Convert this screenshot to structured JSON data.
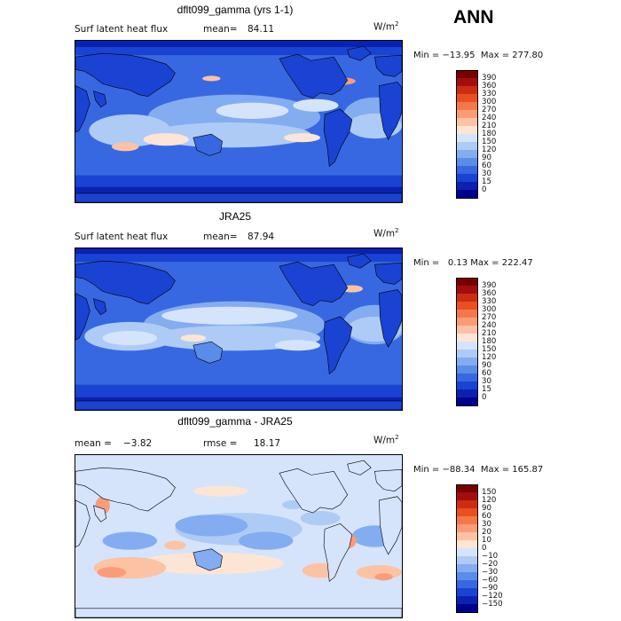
{
  "season": "ANN",
  "units_base": "W/m",
  "units_exp": "2",
  "chart_data": [
    {
      "type": "heatmap",
      "title": "dflt099_gamma (yrs 1-1)",
      "variable": "Surf latent heat flux",
      "mean_label": "mean=",
      "mean": "84.11",
      "min_label": "Min = ",
      "min": "−13.95",
      "max_label": "Max = ",
      "max": "277.80",
      "levels": [
        "390",
        "360",
        "330",
        "300",
        "270",
        "240",
        "210",
        "180",
        "150",
        "120",
        "90",
        "60",
        "30",
        "15",
        "0"
      ],
      "colors": [
        "#7a0000",
        "#a30d0d",
        "#cc2d12",
        "#ea4f20",
        "#f5784a",
        "#fb9c78",
        "#fcc2a4",
        "#fde5d6",
        "#d5e4fb",
        "#aecbf6",
        "#84acf0",
        "#5a8de8",
        "#3868e1",
        "#1a43d3",
        "#0a22b0",
        "#00008f"
      ]
    },
    {
      "type": "heatmap",
      "title": "JRA25",
      "variable": "Surf latent heat flux",
      "mean_label": "mean=",
      "mean": "87.94",
      "min_label": "Min = ",
      "min": "0.13",
      "max_label": "Max = ",
      "max": "222.47",
      "levels": [
        "390",
        "360",
        "330",
        "300",
        "270",
        "240",
        "210",
        "180",
        "150",
        "120",
        "90",
        "60",
        "30",
        "15",
        "0"
      ],
      "colors": [
        "#7a0000",
        "#a30d0d",
        "#cc2d12",
        "#ea4f20",
        "#f5784a",
        "#fb9c78",
        "#fcc2a4",
        "#fde5d6",
        "#d5e4fb",
        "#aecbf6",
        "#84acf0",
        "#5a8de8",
        "#3868e1",
        "#1a43d3",
        "#0a22b0",
        "#00008f"
      ]
    },
    {
      "type": "heatmap",
      "title": "dflt099_gamma - JRA25",
      "mean_label": "mean =",
      "mean": "−3.82",
      "rmse_label": "rmse =",
      "rmse": "18.17",
      "min_label": "Min = ",
      "min": "−88.34",
      "max_label": "Max = ",
      "max": "165.87",
      "levels": [
        "150",
        "120",
        "90",
        "60",
        "30",
        "20",
        "10",
        "0",
        "−10",
        "−20",
        "−30",
        "−60",
        "−90",
        "−120",
        "−150"
      ],
      "colors": [
        "#7a0000",
        "#a30d0d",
        "#cc2d12",
        "#ea4f20",
        "#f5784a",
        "#fb9c78",
        "#fcc2a4",
        "#fde5d6",
        "#d5e4fb",
        "#aecbf6",
        "#84acf0",
        "#5a8de8",
        "#3868e1",
        "#1a43d3",
        "#0a22b0",
        "#00008f"
      ]
    }
  ]
}
